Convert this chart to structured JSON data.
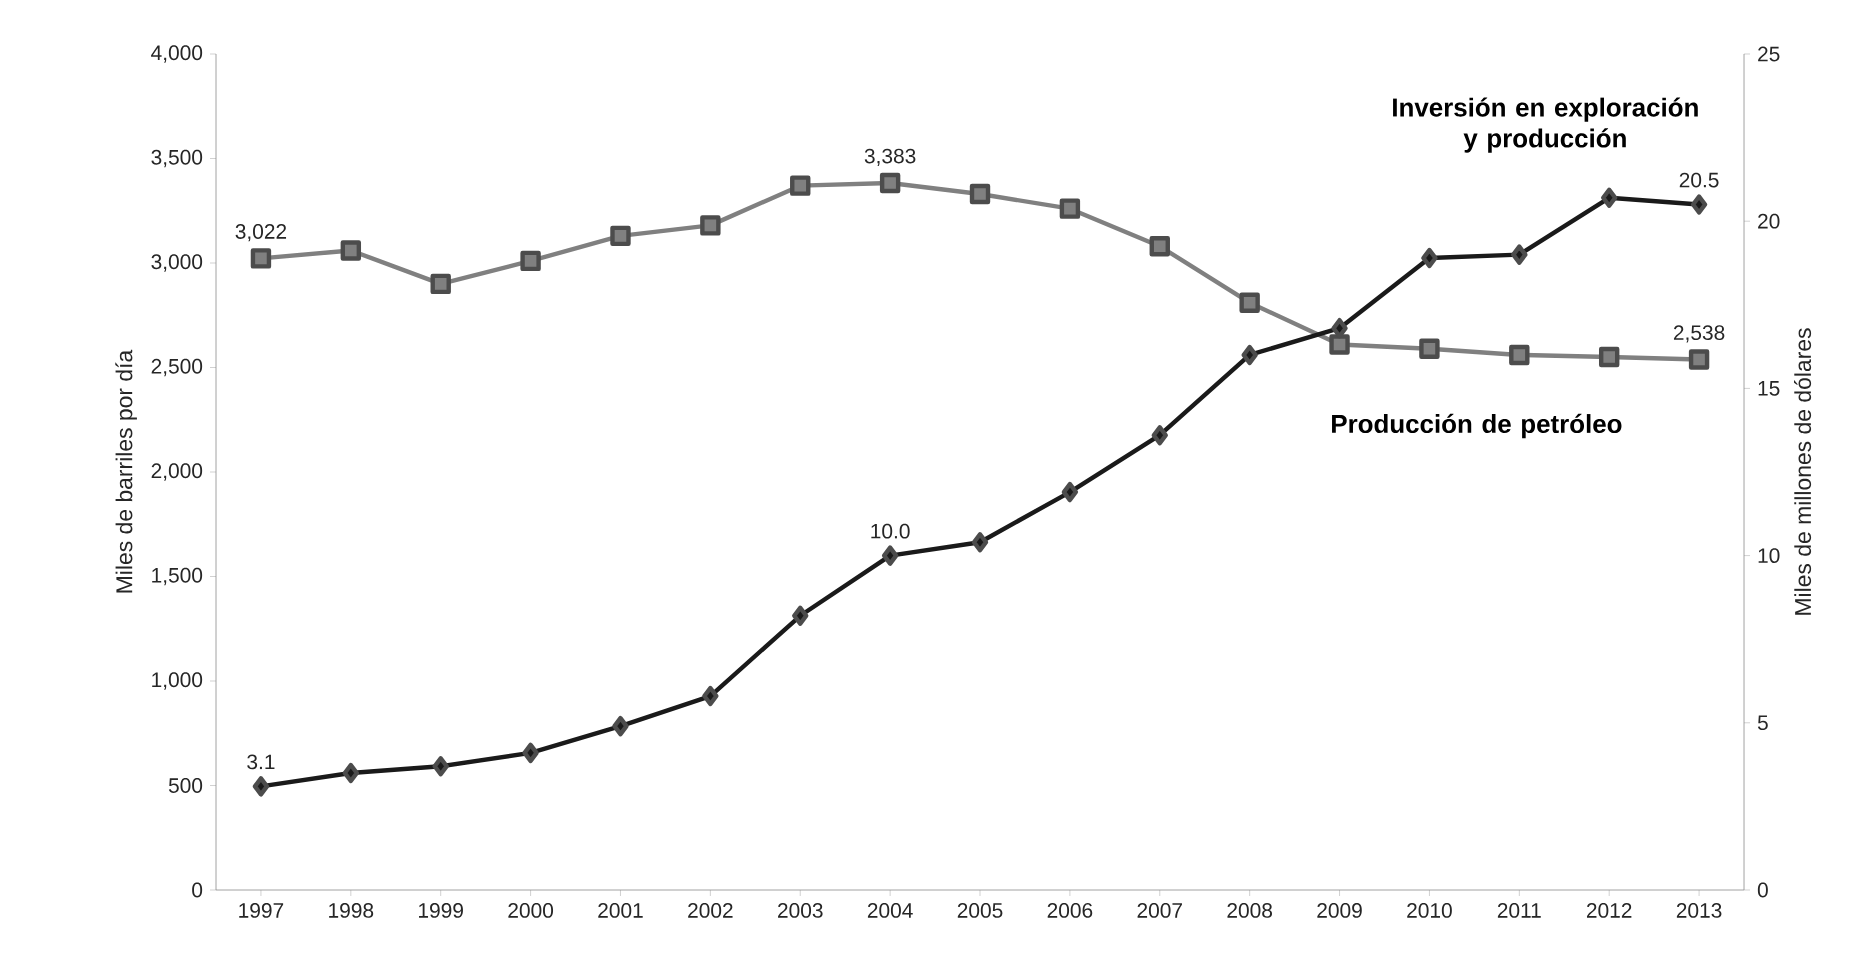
{
  "chart_data": {
    "type": "line",
    "ylabel": "Miles de barriles por día",
    "y2label": "Miles de millones de dólares",
    "categories": [
      "1997",
      "1998",
      "1999",
      "2000",
      "2001",
      "2002",
      "2003",
      "2004",
      "2005",
      "2006",
      "2007",
      "2008",
      "2009",
      "2010",
      "2011",
      "2012",
      "2013"
    ],
    "ylim": [
      0,
      4000
    ],
    "yticks": [
      0,
      500,
      {
        "value": 1000,
        "label": "1,000"
      },
      {
        "value": 1500,
        "label": "1,500"
      },
      {
        "value": 2000,
        "label": "2,000"
      },
      {
        "value": 2500,
        "label": "2,500"
      },
      {
        "value": 3000,
        "label": "3,000"
      },
      {
        "value": 3500,
        "label": "3,500"
      },
      {
        "value": 4000,
        "label": "4,000"
      }
    ],
    "y2lim": [
      0,
      25
    ],
    "y2ticks": [
      0,
      5,
      10,
      15,
      20,
      25
    ],
    "grid": false,
    "legend": false,
    "series": [
      {
        "name": "Producción de petróleo",
        "color": "#808080",
        "marker": "square",
        "values": [
          3022,
          3060,
          2900,
          3010,
          3130,
          3180,
          3370,
          3383,
          3330,
          3260,
          3080,
          2810,
          2610,
          2590,
          2560,
          2550,
          2538
        ],
        "value_labels": [
          "3,022",
          null,
          null,
          null,
          null,
          null,
          null,
          "3,383",
          null,
          null,
          null,
          null,
          null,
          null,
          null,
          null,
          "2,538"
        ]
      },
      {
        "name": "Inversión en exploración y producción",
        "color": "#1a1a1a",
        "marker": "diamond",
        "axis": "y2",
        "values": [
          3.1,
          3.5,
          3.7,
          4.1,
          4.9,
          5.8,
          8.2,
          10.0,
          10.4,
          11.9,
          13.6,
          16.0,
          16.8,
          18.9,
          19.0,
          20.7,
          20.5
        ],
        "value_labels": [
          "3.1",
          null,
          null,
          null,
          null,
          null,
          null,
          "10.0",
          null,
          null,
          null,
          null,
          null,
          null,
          null,
          null,
          "20.5"
        ]
      }
    ]
  }
}
